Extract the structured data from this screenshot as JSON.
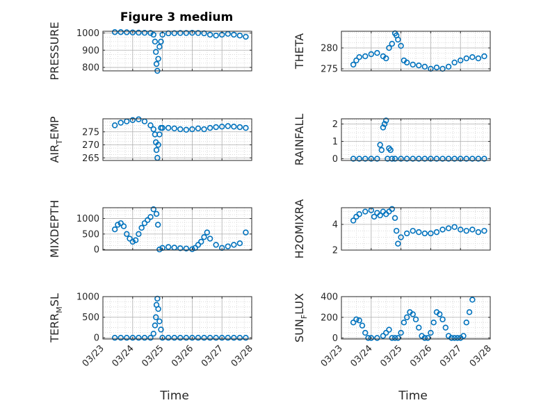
{
  "figure": {
    "title": "Figure 3 medium",
    "xlabel": "Time"
  },
  "colors": {
    "marker": "#0072BD",
    "axis": "#262626",
    "grid": "#b0b0b0",
    "minor_grid": "#d0d0d0"
  },
  "chart_data": [
    {
      "type": "scatter",
      "ylabel": "PRESSURE",
      "ylabel_sub": "",
      "ylim": [
        780,
        1010
      ],
      "yticks": [
        800,
        900,
        1000
      ],
      "xlim": [
        0,
        5
      ],
      "xticks": [
        0,
        1,
        2,
        3,
        4,
        5
      ],
      "xticklabels": [
        "03/23",
        "03/24",
        "03/25",
        "03/26",
        "03/27",
        "03/28"
      ],
      "x": [
        0.4,
        0.6,
        0.8,
        1.0,
        1.2,
        1.4,
        1.6,
        1.7,
        1.75,
        1.78,
        1.8,
        1.83,
        1.86,
        1.9,
        1.95,
        2.0,
        2.2,
        2.4,
        2.6,
        2.8,
        3.0,
        3.2,
        3.4,
        3.6,
        3.8,
        4.0,
        4.2,
        4.4,
        4.6,
        4.8
      ],
      "y": [
        1005,
        1005,
        1004,
        1003,
        1002,
        1001,
        1000,
        990,
        950,
        890,
        820,
        780,
        850,
        920,
        950,
        990,
        998,
        999,
        1000,
        1000,
        1001,
        1000,
        998,
        990,
        985,
        990,
        995,
        990,
        985,
        978
      ]
    },
    {
      "type": "scatter",
      "ylabel": "THETA",
      "ylabel_sub": "",
      "ylim": [
        274.5,
        284
      ],
      "yticks": [
        275,
        280
      ],
      "xlim": [
        0,
        5
      ],
      "xticks": [
        0,
        1,
        2,
        3,
        4,
        5
      ],
      "xticklabels": [
        "03/23",
        "03/24",
        "03/25",
        "03/26",
        "03/27",
        "03/28"
      ],
      "x": [
        0.4,
        0.5,
        0.6,
        0.8,
        1.0,
        1.2,
        1.4,
        1.5,
        1.6,
        1.7,
        1.8,
        1.85,
        1.9,
        2.0,
        2.1,
        2.2,
        2.4,
        2.6,
        2.8,
        3.0,
        3.2,
        3.4,
        3.6,
        3.8,
        4.0,
        4.2,
        4.4,
        4.6,
        4.8
      ],
      "y": [
        276,
        277,
        277.8,
        278,
        278.5,
        278.8,
        278,
        277.5,
        280,
        281,
        283.5,
        283,
        282,
        280.5,
        277,
        276.5,
        276,
        275.8,
        275.5,
        275,
        275.3,
        275,
        275.5,
        276.5,
        277,
        277.5,
        277.8,
        277.5,
        278
      ]
    },
    {
      "type": "scatter",
      "ylabel": "AIR",
      "ylabel_sub": "T",
      "ylabel_rest": "EMP",
      "ylim": [
        264,
        280
      ],
      "yticks": [
        265,
        270,
        275
      ],
      "xlim": [
        0,
        5
      ],
      "xticks": [
        0,
        1,
        2,
        3,
        4,
        5
      ],
      "xticklabels": [
        "03/23",
        "03/24",
        "03/25",
        "03/26",
        "03/27",
        "03/28"
      ],
      "x": [
        0.4,
        0.6,
        0.8,
        1.0,
        1.2,
        1.4,
        1.6,
        1.7,
        1.75,
        1.78,
        1.8,
        1.83,
        1.86,
        1.9,
        1.95,
        2.0,
        2.2,
        2.4,
        2.6,
        2.8,
        3.0,
        3.2,
        3.4,
        3.6,
        3.8,
        4.0,
        4.2,
        4.4,
        4.6,
        4.8
      ],
      "y": [
        277.5,
        278.5,
        279,
        279.5,
        279.8,
        279,
        277.5,
        276,
        274,
        271,
        268,
        265,
        270,
        274,
        276.5,
        276.5,
        276.5,
        276.3,
        276,
        275.8,
        276,
        276.3,
        276,
        276.5,
        276.8,
        277,
        277.2,
        277,
        276.8,
        276.5
      ]
    },
    {
      "type": "scatter",
      "ylabel": "RAINFALL",
      "ylabel_sub": "",
      "ylim": [
        -0.1,
        2.3
      ],
      "yticks": [
        0,
        1,
        2
      ],
      "xlim": [
        0,
        5
      ],
      "xticks": [
        0,
        1,
        2,
        3,
        4,
        5
      ],
      "xticklabels": [
        "03/23",
        "03/24",
        "03/25",
        "03/26",
        "03/27",
        "03/28"
      ],
      "x": [
        0.4,
        0.6,
        0.8,
        1.0,
        1.2,
        1.3,
        1.35,
        1.4,
        1.45,
        1.5,
        1.55,
        1.6,
        1.65,
        1.7,
        1.8,
        2.0,
        2.2,
        2.4,
        2.6,
        2.8,
        3.0,
        3.2,
        3.4,
        3.6,
        3.8,
        4.0,
        4.2,
        4.4,
        4.6,
        4.8
      ],
      "y": [
        0,
        0,
        0,
        0,
        0,
        0.8,
        0.5,
        1.8,
        2.0,
        2.2,
        0,
        0.6,
        0.5,
        0,
        0,
        0,
        0,
        0,
        0,
        0,
        0,
        0,
        0,
        0,
        0,
        0,
        0,
        0,
        0,
        0
      ]
    },
    {
      "type": "scatter",
      "ylabel": "MIXDEPTH",
      "ylabel_sub": "",
      "ylim": [
        -20,
        1350
      ],
      "yticks": [
        0,
        500,
        1000
      ],
      "xlim": [
        0,
        5
      ],
      "xticks": [
        0,
        1,
        2,
        3,
        4,
        5
      ],
      "xticklabels": [
        "03/23",
        "03/24",
        "03/25",
        "03/26",
        "03/27",
        "03/28"
      ],
      "x": [
        0.4,
        0.5,
        0.6,
        0.7,
        0.8,
        0.9,
        1.0,
        1.1,
        1.2,
        1.3,
        1.4,
        1.5,
        1.6,
        1.7,
        1.8,
        1.85,
        1.9,
        2.0,
        2.2,
        2.4,
        2.6,
        2.8,
        3.0,
        3.1,
        3.2,
        3.3,
        3.4,
        3.5,
        3.6,
        3.8,
        4.0,
        4.2,
        4.4,
        4.6,
        4.8
      ],
      "y": [
        650,
        800,
        850,
        750,
        500,
        350,
        250,
        300,
        500,
        700,
        850,
        950,
        1050,
        1300,
        1150,
        800,
        0,
        50,
        80,
        60,
        40,
        30,
        10,
        50,
        150,
        250,
        400,
        550,
        350,
        150,
        50,
        100,
        150,
        200,
        550
      ]
    },
    {
      "type": "scatter",
      "ylabel": "H2OMIXRA",
      "ylabel_sub": "",
      "ylim": [
        2,
        5.3
      ],
      "yticks": [
        2,
        4
      ],
      "xlim": [
        0,
        5
      ],
      "xticks": [
        0,
        1,
        2,
        3,
        4,
        5
      ],
      "xticklabels": [
        "03/23",
        "03/24",
        "03/25",
        "03/26",
        "03/27",
        "03/28"
      ],
      "x": [
        0.4,
        0.5,
        0.6,
        0.8,
        1.0,
        1.1,
        1.2,
        1.3,
        1.4,
        1.5,
        1.6,
        1.7,
        1.8,
        1.85,
        1.9,
        2.0,
        2.2,
        2.4,
        2.6,
        2.8,
        3.0,
        3.2,
        3.4,
        3.6,
        3.8,
        4.0,
        4.2,
        4.4,
        4.6,
        4.8
      ],
      "y": [
        4.3,
        4.6,
        4.8,
        5.0,
        5.1,
        4.6,
        4.9,
        4.7,
        5.0,
        4.8,
        5.0,
        5.2,
        4.5,
        3.5,
        2.5,
        3.0,
        3.3,
        3.5,
        3.4,
        3.3,
        3.3,
        3.4,
        3.6,
        3.7,
        3.8,
        3.6,
        3.5,
        3.6,
        3.4,
        3.5
      ]
    },
    {
      "type": "scatter",
      "ylabel": "TERR",
      "ylabel_sub": "M",
      "ylabel_rest": "SL",
      "ylim": [
        -30,
        1000
      ],
      "yticks": [
        0,
        500,
        1000
      ],
      "xlim": [
        0,
        5
      ],
      "xticks": [
        0,
        1,
        2,
        3,
        4,
        5
      ],
      "xticklabels": [
        "03/23",
        "03/24",
        "03/25",
        "03/26",
        "03/27",
        "03/28"
      ],
      "x": [
        0.4,
        0.6,
        0.8,
        1.0,
        1.2,
        1.4,
        1.6,
        1.7,
        1.75,
        1.78,
        1.8,
        1.83,
        1.86,
        1.9,
        1.95,
        2.0,
        2.2,
        2.4,
        2.6,
        2.8,
        3.0,
        3.2,
        3.4,
        3.6,
        3.8,
        4.0,
        4.2,
        4.4,
        4.6,
        4.8
      ],
      "y": [
        0,
        0,
        0,
        0,
        0,
        0,
        0,
        100,
        300,
        500,
        800,
        950,
        700,
        400,
        200,
        0,
        0,
        0,
        0,
        0,
        0,
        0,
        0,
        0,
        0,
        0,
        0,
        0,
        0,
        0
      ]
    },
    {
      "type": "scatter",
      "ylabel": "SUN",
      "ylabel_sub": "F",
      "ylabel_rest": "LUX",
      "ylim": [
        -10,
        400
      ],
      "yticks": [
        0,
        200,
        400
      ],
      "xlim": [
        0,
        5
      ],
      "xticks": [
        0,
        1,
        2,
        3,
        4,
        5
      ],
      "xticklabels": [
        "03/23",
        "03/24",
        "03/25",
        "03/26",
        "03/27",
        "03/28"
      ],
      "x": [
        0.4,
        0.5,
        0.6,
        0.7,
        0.8,
        0.9,
        1.0,
        1.2,
        1.4,
        1.5,
        1.6,
        1.7,
        1.8,
        1.9,
        2.0,
        2.1,
        2.2,
        2.3,
        2.4,
        2.5,
        2.6,
        2.7,
        2.8,
        2.9,
        3.0,
        3.1,
        3.2,
        3.3,
        3.4,
        3.5,
        3.6,
        3.7,
        3.8,
        3.9,
        4.0,
        4.1,
        4.2,
        4.3,
        4.4
      ],
      "y": [
        150,
        180,
        170,
        120,
        50,
        0,
        0,
        0,
        20,
        50,
        80,
        0,
        0,
        0,
        50,
        150,
        200,
        250,
        230,
        180,
        100,
        20,
        0,
        0,
        50,
        150,
        250,
        230,
        180,
        100,
        20,
        0,
        0,
        0,
        0,
        20,
        150,
        250,
        370
      ]
    }
  ]
}
